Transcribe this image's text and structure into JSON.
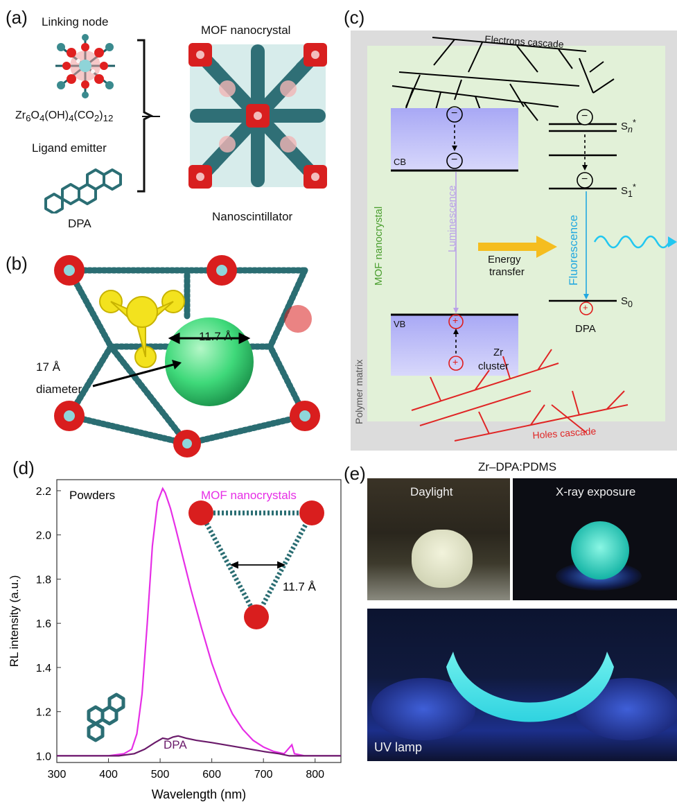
{
  "panels": {
    "a": {
      "label": "(a)",
      "linking_node": "Linking node",
      "formula_html": "Zr<sub>6</sub>O<sub>4</sub>(OH)<sub>4</sub>(CO<sub>2</sub>)<sub>12</sub>",
      "ligand_emitter": "Ligand emitter",
      "dpa": "DPA",
      "mof_nanocrystal": "MOF nanocrystal",
      "nanoscintillator": "Nanoscintillator"
    },
    "b": {
      "label": "(b)",
      "pore": "11.7 Å",
      "diameter_line1": "17 Å",
      "diameter_line2": "diameter"
    },
    "c": {
      "label": "(c)",
      "electrons_cascade": "Electrons cascade",
      "holes_cascade": "Holes cascade",
      "cb": "CB",
      "vb": "VB",
      "zr": "Zr",
      "cluster": "cluster",
      "luminescence": "Luminescence",
      "fluorescence": "Fluorescence",
      "energy": "Energy",
      "transfer": "transfer",
      "mof_nanocrystal": "MOF nanocrystal",
      "polymer_matrix": "Polymer matrix",
      "sn": "S",
      "sn_sub": "n",
      "s1": "S",
      "s1_sub": "1",
      "s0": "S",
      "s0_sub": "0",
      "star": "*",
      "dpa": "DPA",
      "minus": "−",
      "plus": "+"
    },
    "d": {
      "label": "(d)",
      "powders": "Powders",
      "mof_legend": "MOF nanocrystals",
      "dpa_legend": "DPA",
      "inset_pore": "11.7 Å"
    },
    "e": {
      "label": "(e)",
      "title": "Zr–DPA:PDMS",
      "daylight": "Daylight",
      "xray": "X-ray exposure",
      "uv": "UV lamp"
    }
  },
  "chart_data": {
    "type": "line",
    "xlabel": "Wavelength (nm)",
    "ylabel": "RL intensity (a.u.)",
    "xlim": [
      300,
      850
    ],
    "ylim": [
      0.97,
      2.25
    ],
    "xticks": [
      300,
      400,
      500,
      600,
      700,
      800
    ],
    "yticks": [
      1.0,
      1.2,
      1.4,
      1.6,
      1.8,
      2.0,
      2.2
    ],
    "series": [
      {
        "name": "MOF nanocrystals",
        "color": "#e62ee6",
        "x": [
          300,
          400,
          430,
          445,
          455,
          465,
          475,
          485,
          495,
          505,
          510,
          520,
          530,
          545,
          560,
          580,
          600,
          620,
          640,
          660,
          680,
          700,
          720,
          740,
          755,
          760,
          780,
          800,
          850
        ],
        "y": [
          1.0,
          1.0,
          1.01,
          1.03,
          1.1,
          1.28,
          1.6,
          1.95,
          2.15,
          2.21,
          2.19,
          2.12,
          2.03,
          1.89,
          1.75,
          1.58,
          1.42,
          1.29,
          1.19,
          1.12,
          1.07,
          1.04,
          1.02,
          1.01,
          1.05,
          1.01,
          1.0,
          1.0,
          1.0
        ]
      },
      {
        "name": "DPA",
        "color": "#6a1a6a",
        "x": [
          300,
          420,
          450,
          470,
          490,
          505,
          515,
          525,
          535,
          550,
          570,
          600,
          650,
          700,
          730,
          750,
          850
        ],
        "y": [
          1.0,
          1.0,
          1.01,
          1.03,
          1.06,
          1.08,
          1.075,
          1.085,
          1.09,
          1.08,
          1.07,
          1.06,
          1.04,
          1.02,
          1.01,
          1.0,
          1.0
        ]
      }
    ]
  }
}
